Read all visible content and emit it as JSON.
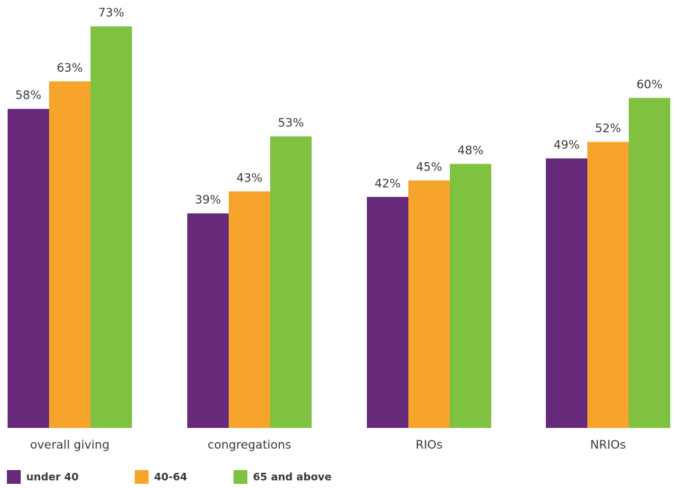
{
  "chart_data": {
    "type": "bar",
    "categories": [
      "overall giving",
      "congregations",
      "RIOs",
      "NRIOs"
    ],
    "series": [
      {
        "name": "under 40",
        "values": [
          58,
          39,
          42,
          49
        ],
        "color": "#672a7a"
      },
      {
        "name": "40-64",
        "values": [
          63,
          43,
          45,
          52
        ],
        "color": "#f6a42c"
      },
      {
        "name": "65 and above",
        "values": [
          73,
          53,
          48,
          60
        ],
        "color": "#7fc241"
      }
    ],
    "value_suffix": "%",
    "ylim": [
      0,
      100
    ],
    "grid": false,
    "legend_position": "bottom-left",
    "title": "",
    "xlabel": "",
    "ylabel": ""
  },
  "legend": {
    "items": [
      {
        "label": "under 40",
        "color": "#672a7a"
      },
      {
        "label": "40-64",
        "color": "#f6a42c"
      },
      {
        "label": "65 and above",
        "color": "#7fc241"
      }
    ]
  }
}
